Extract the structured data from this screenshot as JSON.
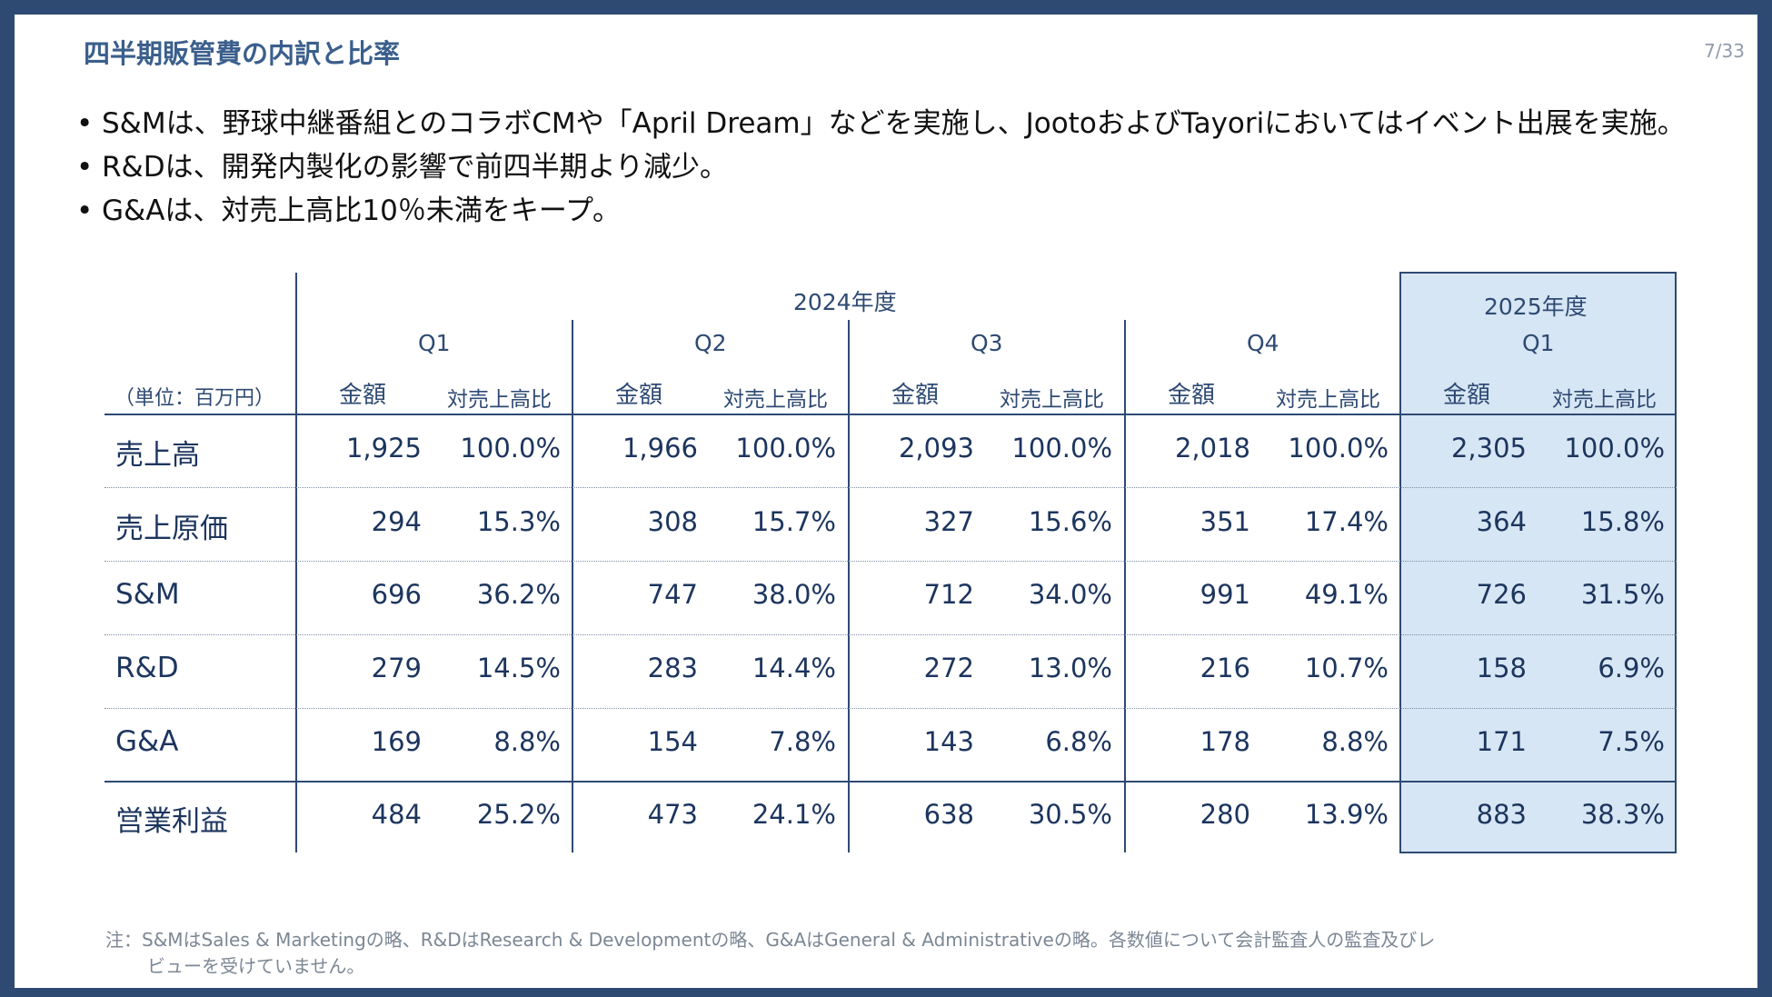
{
  "title": "四半期販管費の内訳と比率",
  "page_number": "7/33",
  "bullets": [
    "S&Mは、野球中継番組とのコラボCMや「April Dream」などを実施し、JootoおよびTayoriにおいてはイベント出展を実施。",
    "R&Dは、開発内製化の影響で前四半期より減少。",
    "G&Aは、対売上高比10％未満をキープ。"
  ],
  "table": {
    "unit_label": "（単位：百万円）",
    "fy_labels": [
      "2024年度",
      "2025年度"
    ],
    "quarters": [
      "Q1",
      "Q2",
      "Q3",
      "Q4",
      "Q1"
    ],
    "amount_header": "金額",
    "ratio_header": "対売上高比",
    "rows": [
      {
        "label": "売上高",
        "values": [
          [
            "1,925",
            "100.0%"
          ],
          [
            "1,966",
            "100.0%"
          ],
          [
            "2,093",
            "100.0%"
          ],
          [
            "2,018",
            "100.0%"
          ],
          [
            "2,305",
            "100.0%"
          ]
        ]
      },
      {
        "label": "売上原価",
        "values": [
          [
            "294",
            "15.3%"
          ],
          [
            "308",
            "15.7%"
          ],
          [
            "327",
            "15.6%"
          ],
          [
            "351",
            "17.4%"
          ],
          [
            "364",
            "15.8%"
          ]
        ]
      },
      {
        "label": "S&M",
        "values": [
          [
            "696",
            "36.2%"
          ],
          [
            "747",
            "38.0%"
          ],
          [
            "712",
            "34.0%"
          ],
          [
            "991",
            "49.1%"
          ],
          [
            "726",
            "31.5%"
          ]
        ]
      },
      {
        "label": "R&D",
        "values": [
          [
            "279",
            "14.5%"
          ],
          [
            "283",
            "14.4%"
          ],
          [
            "272",
            "13.0%"
          ],
          [
            "216",
            "10.7%"
          ],
          [
            "158",
            "6.9%"
          ]
        ]
      },
      {
        "label": "G&A",
        "values": [
          [
            "169",
            "8.8%"
          ],
          [
            "154",
            "7.8%"
          ],
          [
            "143",
            "6.8%"
          ],
          [
            "178",
            "8.8%"
          ],
          [
            "171",
            "7.5%"
          ]
        ]
      },
      {
        "label": "営業利益",
        "values": [
          [
            "484",
            "25.2%"
          ],
          [
            "473",
            "24.1%"
          ],
          [
            "638",
            "30.5%"
          ],
          [
            "280",
            "13.9%"
          ],
          [
            "883",
            "38.3%"
          ]
        ]
      }
    ]
  },
  "footnote": [
    "注：S&MはSales & Marketingの略、R&DはResearch & Developmentの略、G&AはGeneral & Administrativeの略。各数値について会計監査人の監査及びレ",
    "ビューを受けていません。"
  ],
  "colors": {
    "frame": "#2e4a73",
    "title": "#3b5f8c",
    "highlight": "#d7e6f4"
  }
}
